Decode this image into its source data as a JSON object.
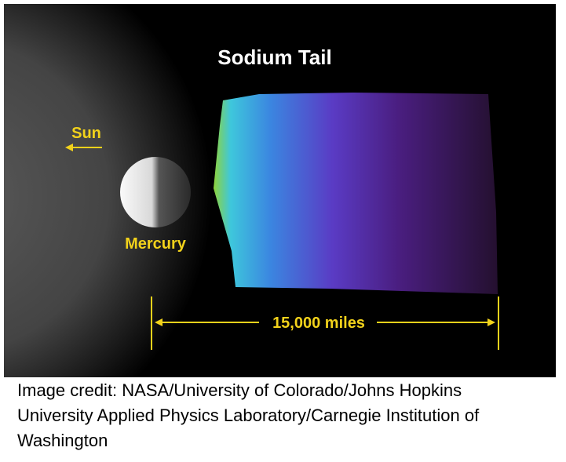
{
  "illustration": {
    "title": "Sodium Tail",
    "sun_label": "Sun",
    "planet_label": "Mercury",
    "scale_label": "15,000 miles"
  },
  "caption": {
    "lines": [
      "Image credit: NASA/University of Colorado/Johns Hopkins",
      "University Applied Physics Laboratory/Carnegie Institution of",
      "Washington"
    ]
  }
}
